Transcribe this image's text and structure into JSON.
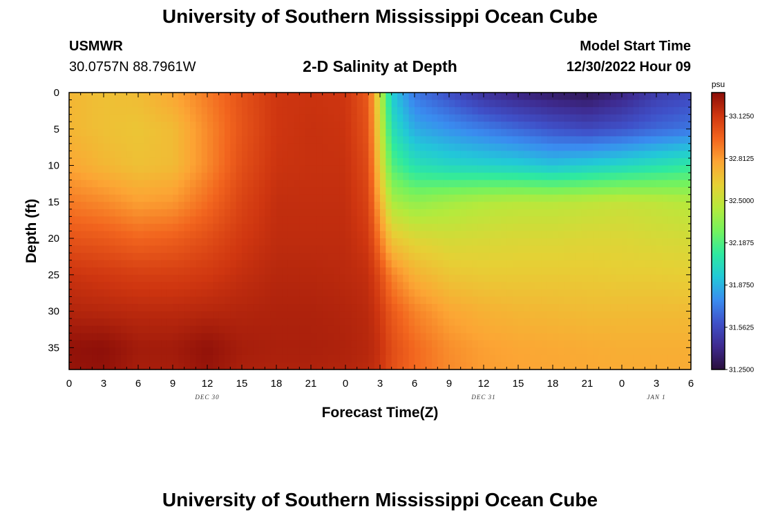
{
  "header": {
    "title": "University of Southern Mississippi Ocean Cube",
    "station": "USMWR",
    "coords": "30.0757N  88.7961W",
    "subtitle": "2-D Salinity at Depth",
    "run_label": "Model Start Time",
    "run_value": "12/30/2022 Hour 09"
  },
  "footer": {
    "title": "University of Southern Mississippi Ocean Cube"
  },
  "chart_data": {
    "type": "heatmap",
    "xlabel": "Forecast Time(Z)",
    "ylabel": "Depth (ft)",
    "x_tick_labels": [
      "0",
      "3",
      "6",
      "9",
      "12",
      "15",
      "18",
      "21",
      "0",
      "3",
      "6",
      "9",
      "12",
      "15",
      "18",
      "21",
      "0",
      "3",
      "6"
    ],
    "date_labels": [
      {
        "text": "DEC 30",
        "at_tick": 4
      },
      {
        "text": "DEC 31",
        "at_tick": 12
      },
      {
        "text": "JAN 1",
        "at_tick": 17
      }
    ],
    "x_range_hours": [
      0,
      54
    ],
    "y_tick_labels": [
      0,
      5,
      10,
      15,
      20,
      25,
      30,
      35
    ],
    "ylim": [
      0,
      38
    ],
    "y_inverted": true,
    "colorbar": {
      "unit": "psu",
      "min": 31.25,
      "max": 33.3,
      "tick_labels": [
        "33.1250",
        "32.8125",
        "32.5000",
        "32.1875",
        "31.8750",
        "31.5625",
        "31.2500"
      ],
      "tick_values": [
        33.125,
        32.8125,
        32.5,
        32.1875,
        31.875,
        31.5625,
        31.25
      ],
      "colors": [
        "#2a0f3c",
        "#3e2a8f",
        "#3f50c8",
        "#3a8cf0",
        "#22c8d8",
        "#2ee9a0",
        "#74f25e",
        "#b5ea3c",
        "#e6d035",
        "#fca534",
        "#f2651e",
        "#cf3610",
        "#8a0d08"
      ]
    },
    "sampled_values": {
      "description": "Salinity (psu) at depth rows (ft) vs forecast hours",
      "hours": [
        0,
        3,
        6,
        9,
        12,
        15,
        18,
        21,
        24,
        26,
        27,
        28,
        30,
        33,
        36,
        39,
        42,
        45,
        48,
        51,
        54
      ],
      "depths": [
        0,
        5,
        10,
        15,
        20,
        25,
        30,
        35,
        38
      ],
      "values": [
        [
          32.72,
          32.68,
          32.7,
          32.78,
          32.9,
          33.03,
          33.13,
          33.14,
          33.13,
          33.0,
          32.5,
          31.95,
          31.7,
          31.58,
          31.45,
          31.38,
          31.33,
          31.3,
          31.38,
          31.5,
          31.55
        ],
        [
          32.72,
          32.68,
          32.66,
          32.7,
          32.86,
          33.02,
          33.13,
          33.15,
          33.14,
          33.02,
          32.55,
          32.05,
          31.85,
          31.78,
          31.72,
          31.66,
          31.6,
          31.56,
          31.6,
          31.66,
          31.7
        ],
        [
          32.78,
          32.72,
          32.68,
          32.7,
          32.86,
          33.04,
          33.14,
          33.15,
          33.15,
          33.05,
          32.62,
          32.2,
          32.05,
          32.0,
          31.98,
          31.96,
          31.92,
          31.96,
          32.0,
          32.05,
          32.1
        ],
        [
          32.9,
          32.86,
          32.8,
          32.82,
          32.94,
          33.08,
          33.16,
          33.16,
          33.16,
          33.08,
          32.75,
          32.42,
          32.35,
          32.4,
          32.44,
          32.46,
          32.46,
          32.48,
          32.5,
          32.48,
          32.45
        ],
        [
          33.02,
          33.0,
          32.96,
          32.98,
          33.04,
          33.12,
          33.17,
          33.17,
          33.17,
          33.12,
          32.9,
          32.66,
          32.58,
          32.55,
          32.56,
          32.57,
          32.57,
          32.58,
          32.58,
          32.56,
          32.55
        ],
        [
          33.14,
          33.12,
          33.1,
          33.1,
          33.12,
          33.16,
          33.19,
          33.19,
          33.18,
          33.16,
          33.05,
          32.88,
          32.74,
          32.66,
          32.64,
          32.64,
          32.64,
          32.64,
          32.63,
          32.63,
          32.62
        ],
        [
          33.2,
          33.19,
          33.18,
          33.18,
          33.19,
          33.2,
          33.21,
          33.21,
          33.2,
          33.18,
          33.12,
          33.0,
          32.88,
          32.78,
          32.74,
          32.72,
          32.71,
          32.7,
          32.7,
          32.7,
          32.7
        ],
        [
          33.28,
          33.29,
          33.24,
          33.24,
          33.28,
          33.23,
          33.22,
          33.22,
          33.21,
          33.19,
          33.15,
          33.05,
          32.95,
          32.85,
          32.8,
          32.78,
          32.77,
          32.76,
          32.75,
          32.75,
          32.75
        ],
        [
          33.27,
          33.28,
          33.23,
          33.23,
          33.27,
          33.22,
          33.21,
          33.21,
          33.2,
          33.18,
          33.14,
          33.04,
          32.95,
          32.86,
          32.81,
          32.79,
          32.78,
          32.77,
          32.76,
          32.76,
          32.76
        ]
      ]
    }
  }
}
